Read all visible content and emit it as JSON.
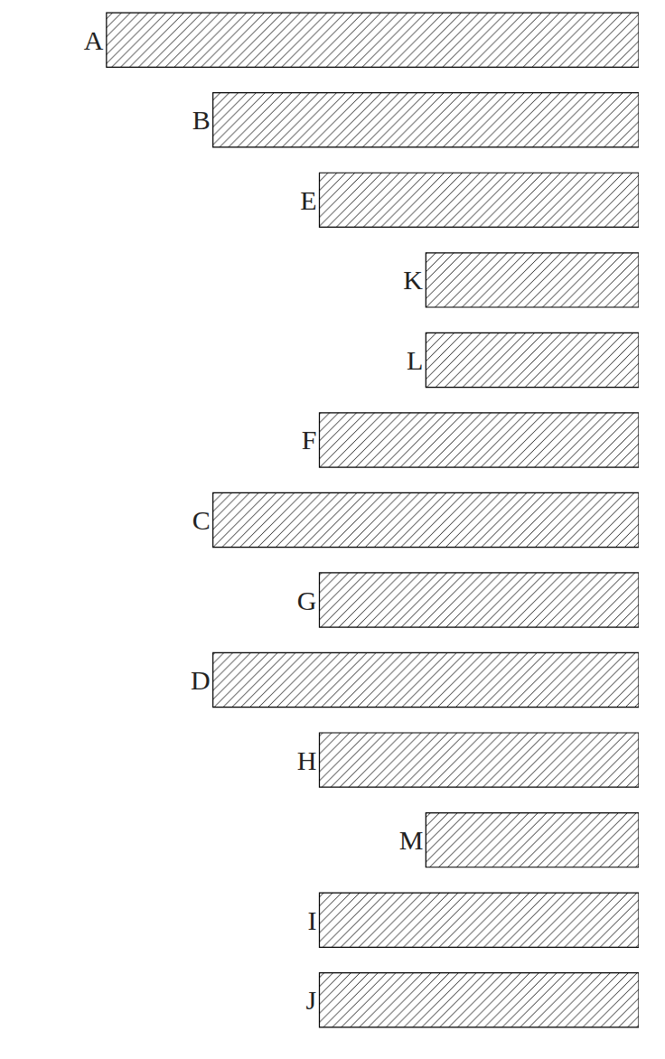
{
  "chart_data": {
    "type": "bar",
    "orientation": "horizontal",
    "categories": [
      "A",
      "B",
      "E",
      "K",
      "L",
      "F",
      "C",
      "G",
      "D",
      "H",
      "M",
      "I",
      "J"
    ],
    "values": [
      5,
      4,
      3,
      2,
      2,
      3,
      4,
      3,
      4,
      3,
      2,
      3,
      3
    ],
    "color": "#000000",
    "xlim": [
      0,
      6
    ],
    "grid": false,
    "tick_labels": false
  }
}
